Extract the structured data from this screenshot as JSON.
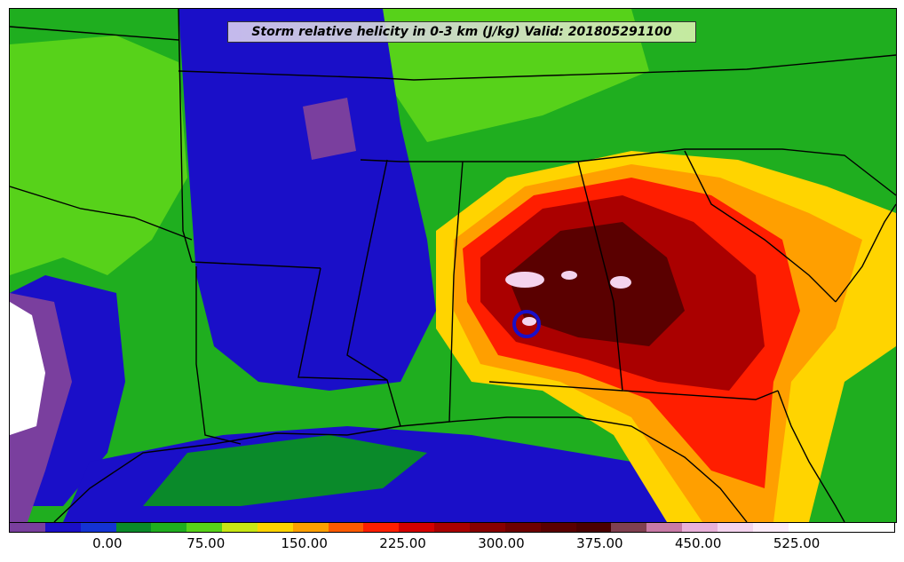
{
  "title": "Storm relative helicity in 0-3 km (J/kg) Valid: 201805291100",
  "colorbar": {
    "colors": [
      "#7a3f9e",
      "#1a0fc8",
      "#1433d4",
      "#0a8a2a",
      "#1fae1f",
      "#57d21a",
      "#c8e614",
      "#ffd400",
      "#ff9f00",
      "#ff5a00",
      "#ff1e00",
      "#d40000",
      "#aa0000",
      "#880000",
      "#6e0000",
      "#5a0000",
      "#4a0000",
      "#804050",
      "#c87aa6",
      "#e8b0d8",
      "#f4d4ee",
      "#fcebf8",
      "#ffffff",
      "#ffffff",
      "#ffffff"
    ],
    "ticks": [
      {
        "value": 0,
        "label": "0.00"
      },
      {
        "value": 75,
        "label": "75.00"
      },
      {
        "value": 150,
        "label": "150.00"
      },
      {
        "value": 225,
        "label": "225.00"
      },
      {
        "value": 300,
        "label": "300.00"
      },
      {
        "value": 375,
        "label": "375.00"
      },
      {
        "value": 450,
        "label": "450.00"
      },
      {
        "value": 525,
        "label": "525.00"
      }
    ],
    "range": [
      -75,
      600
    ]
  },
  "region_colors": {
    "background": "#1fae1f",
    "purple": "#7a3f9e",
    "blue": "#1a0fc8",
    "darkgreen": "#0a8a2a",
    "lime": "#57d21a",
    "yellow": "#ffd400",
    "orange": "#ff9f00",
    "red": "#ff1e00",
    "darkred": "#aa0000",
    "maroon": "#5a0000",
    "pink": "#f4d4ee"
  }
}
